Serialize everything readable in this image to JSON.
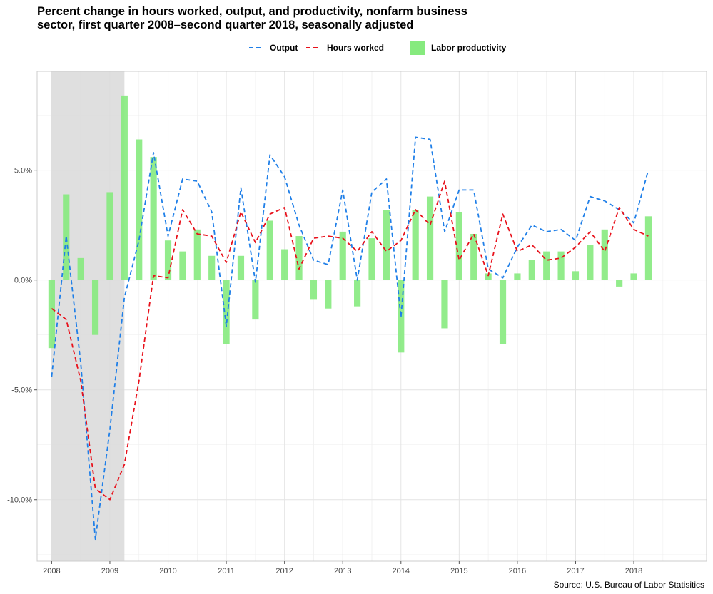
{
  "chart_data": {
    "type": "bar+line",
    "title": "Percent change in hours worked, output, and productivity, nonfarm business sector, first quarter 2008–second quarter 2018, seasonally adjusted",
    "title_lines": [
      "Percent change in hours worked, output, and productivity, nonfarm business",
      "sector, first quarter 2008–second quarter 2018, seasonally adjusted"
    ],
    "source": "Source: U.S. Bureau of Labor Statisitics",
    "x_ticks": [
      "2008",
      "2009",
      "2010",
      "2011",
      "2012",
      "2013",
      "2014",
      "2015",
      "2016",
      "2017",
      "2018"
    ],
    "y_ticks": [
      {
        "value": 5,
        "label": "5.0%"
      },
      {
        "value": 0,
        "label": "0.0%"
      },
      {
        "value": -5,
        "label": "-5.0%"
      },
      {
        "value": -10,
        "label": "-10.0%"
      }
    ],
    "ylim": [
      -12.8,
      9.5
    ],
    "xlim": [
      2007.75,
      2019.25
    ],
    "grid": true,
    "legend_position": "top",
    "recession_shade": {
      "start": 2008.0,
      "end": 2009.25,
      "color": "#d9d9d9"
    },
    "x": [
      2008.0,
      2008.25,
      2008.5,
      2008.75,
      2009.0,
      2009.25,
      2009.5,
      2009.75,
      2010.0,
      2010.25,
      2010.5,
      2010.75,
      2011.0,
      2011.25,
      2011.5,
      2011.75,
      2012.0,
      2012.25,
      2012.5,
      2012.75,
      2013.0,
      2013.25,
      2013.5,
      2013.75,
      2014.0,
      2014.25,
      2014.5,
      2014.75,
      2015.0,
      2015.25,
      2015.5,
      2015.75,
      2016.0,
      2016.25,
      2016.5,
      2016.75,
      2017.0,
      2017.25,
      2017.5,
      2017.75,
      2018.0,
      2018.25
    ],
    "series": [
      {
        "name": "Output",
        "kind": "line",
        "style": "dashed",
        "color": "#1f7fe8",
        "values": [
          -4.4,
          2.0,
          -3.8,
          -11.8,
          -6.8,
          -0.8,
          1.8,
          5.8,
          2.0,
          4.6,
          4.5,
          3.1,
          -2.1,
          4.2,
          -0.1,
          5.7,
          4.7,
          2.5,
          0.9,
          0.7,
          4.1,
          0.0,
          4.0,
          4.6,
          -1.7,
          6.5,
          6.4,
          2.2,
          4.1,
          4.1,
          0.5,
          0.1,
          1.5,
          2.5,
          2.2,
          2.3,
          1.8,
          3.8,
          3.6,
          3.2,
          2.6,
          5.0
        ]
      },
      {
        "name": "Hours worked",
        "kind": "line",
        "style": "dashed",
        "color": "#e8111b",
        "values": [
          -1.3,
          -1.8,
          -4.6,
          -9.5,
          -10.0,
          -8.4,
          -4.6,
          0.2,
          0.1,
          3.2,
          2.1,
          2.0,
          0.8,
          3.1,
          1.7,
          3.0,
          3.3,
          0.5,
          1.9,
          2.0,
          1.9,
          1.3,
          2.2,
          1.3,
          1.8,
          3.2,
          2.5,
          4.5,
          0.9,
          2.1,
          0.2,
          3.0,
          1.3,
          1.6,
          0.9,
          1.0,
          1.5,
          2.2,
          1.3,
          3.3,
          2.3,
          2.0
        ]
      },
      {
        "name": "Labor productivity",
        "kind": "bar",
        "color": "#86ea7e",
        "values": [
          -3.1,
          3.9,
          1.0,
          -2.5,
          4.0,
          8.4,
          6.4,
          5.6,
          1.8,
          1.3,
          2.3,
          1.1,
          -2.9,
          1.1,
          -1.8,
          2.7,
          1.4,
          2.0,
          -0.9,
          -1.3,
          2.2,
          -1.2,
          1.9,
          3.2,
          -3.3,
          3.2,
          3.8,
          -2.2,
          3.1,
          2.1,
          0.3,
          -2.9,
          0.3,
          0.9,
          1.3,
          1.3,
          0.4,
          1.6,
          2.3,
          -0.3,
          0.3,
          2.9
        ]
      }
    ]
  }
}
